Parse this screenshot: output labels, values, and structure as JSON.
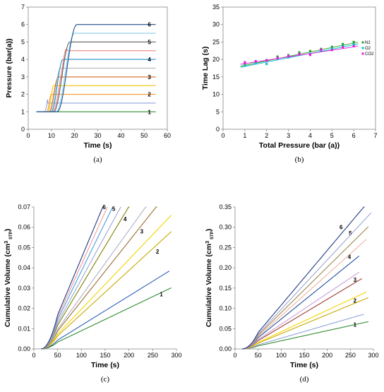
{
  "chart_data": [
    {
      "id": "a",
      "type": "line",
      "panel_label": "(a)",
      "xlabel": "Time (s)",
      "ylabel": "Pressure  (bar(a))",
      "xlim": [
        0,
        60
      ],
      "ylim": [
        0,
        7
      ],
      "xticks": [
        0,
        10,
        20,
        30,
        40,
        50,
        60
      ],
      "yticks": [
        0,
        1,
        2,
        3,
        4,
        5,
        6,
        7
      ],
      "grid": false,
      "series": [
        {
          "name": "1",
          "color": "#2e8b2e",
          "plateau": 1.0,
          "rise_start": 5,
          "rise_end": 6,
          "overshoot": 0
        },
        {
          "name": "",
          "color": "#8fa3d9",
          "plateau": 1.5,
          "rise_start": 7,
          "rise_end": 8.5,
          "overshoot": 0.2
        },
        {
          "name": "2",
          "color": "#f29a2e",
          "plateau": 2.0,
          "rise_start": 8,
          "rise_end": 10,
          "overshoot": 0
        },
        {
          "name": "",
          "color": "#f5c400",
          "plateau": 2.5,
          "rise_start": 8.5,
          "rise_end": 11,
          "overshoot": 0
        },
        {
          "name": "3",
          "color": "#d2691e",
          "plateau": 3.0,
          "rise_start": 9,
          "rise_end": 13,
          "overshoot": 0
        },
        {
          "name": "",
          "color": "#b0b0b0",
          "plateau": 3.5,
          "rise_start": 9.5,
          "rise_end": 14,
          "overshoot": 0
        },
        {
          "name": "4",
          "color": "#1e90c8",
          "plateau": 4.0,
          "rise_start": 10,
          "rise_end": 15,
          "overshoot": 0
        },
        {
          "name": "",
          "color": "#f08080",
          "plateau": 4.5,
          "rise_start": 10.5,
          "rise_end": 17,
          "overshoot": 0.2
        },
        {
          "name": "5",
          "color": "#606060",
          "plateau": 5.0,
          "rise_start": 11,
          "rise_end": 18,
          "overshoot": 0
        },
        {
          "name": "",
          "color": "#87ceeb",
          "plateau": 5.5,
          "rise_start": 12,
          "rise_end": 20,
          "overshoot": 0
        },
        {
          "name": "6",
          "color": "#1f4e8c",
          "plateau": 6.0,
          "rise_start": 12.5,
          "rise_end": 21,
          "overshoot": 0
        }
      ],
      "x_end": 55
    },
    {
      "id": "b",
      "type": "scatter",
      "panel_label": "(b)",
      "xlabel": "Total Pressure (bar (a))",
      "ylabel": "Time Lag (s)",
      "xlim": [
        0,
        7
      ],
      "ylim": [
        0,
        35
      ],
      "xticks": [
        0,
        1,
        2,
        3,
        4,
        5,
        6,
        7
      ],
      "yticks": [
        0,
        5,
        10,
        15,
        20,
        25,
        30,
        35
      ],
      "legend_position": "right",
      "grid": false,
      "x": [
        1,
        1.5,
        2,
        2.5,
        3,
        3.5,
        4,
        4.5,
        5,
        5.5,
        6
      ],
      "series": [
        {
          "name": "N2",
          "color": "#2ca02c",
          "values": [
            18.5,
            19.2,
            19.8,
            20.8,
            21.2,
            22.0,
            22.4,
            23.0,
            23.6,
            24.4,
            25.0
          ],
          "fit": [
            18.3,
            24.7
          ]
        },
        {
          "name": "O2",
          "color": "#17becf",
          "values": [
            18.2,
            19.0,
            18.7,
            20.2,
            20.6,
            21.4,
            21.6,
            22.5,
            23.1,
            23.8,
            24.3
          ],
          "fit": [
            18.0,
            24.2
          ]
        },
        {
          "name": "CO2",
          "color": "#e020e0",
          "values": [
            19.2,
            19.5,
            19.7,
            20.4,
            21.0,
            21.6,
            21.3,
            22.8,
            22.7,
            23.5,
            23.8
          ],
          "fit": [
            18.8,
            23.6
          ]
        }
      ]
    },
    {
      "id": "c",
      "type": "line",
      "panel_label": "(c)",
      "xlabel": "Time (s)",
      "ylabel": "Cumulative Volume (cm³ STP)",
      "ylabel_main": "Cumulative Volume (cm",
      "ylabel_sup": "3",
      "ylabel_sub": "STP",
      "ylabel_close": ")",
      "xlim": [
        0,
        300
      ],
      "ylim": [
        0,
        0.07
      ],
      "xticks": [
        0,
        50,
        100,
        150,
        200,
        250,
        300
      ],
      "yticks": [
        0,
        0.01,
        0.02,
        0.03,
        0.04,
        0.05,
        0.06,
        0.07
      ],
      "ytick_labels": [
        "0.00",
        "0.01",
        "0.02",
        "0.03",
        "0.04",
        "0.05",
        "0.06",
        "0.07"
      ],
      "grid": false,
      "lag": 20,
      "series": [
        {
          "name": "1",
          "color": "#2e8b2e",
          "slope": 0.000112,
          "x_end": 290
        },
        {
          "name": "",
          "color": "#2f5fb8",
          "slope": 0.000145,
          "x_end": 285
        },
        {
          "name": "2",
          "color": "#c8a800",
          "slope": 0.000215,
          "x_end": 290
        },
        {
          "name": "",
          "color": "#f2d400",
          "slope": 0.000245,
          "x_end": 290
        },
        {
          "name": "3",
          "color": "#9c6d2e",
          "slope": 0.000295,
          "x_end": 275
        },
        {
          "name": "",
          "color": "#b0b0c8",
          "slope": 0.000325,
          "x_end": 260
        },
        {
          "name": "4",
          "color": "#808000",
          "slope": 0.00039,
          "x_end": 240
        },
        {
          "name": "",
          "color": "#9aa7d6",
          "slope": 0.00043,
          "x_end": 215
        },
        {
          "name": "5",
          "color": "#4aa0d8",
          "slope": 0.00048,
          "x_end": 205
        },
        {
          "name": "",
          "color": "#f59a9a",
          "slope": 0.00052,
          "x_end": 190
        },
        {
          "name": "6",
          "color": "#203a80",
          "slope": 0.00056,
          "x_end": 180
        }
      ],
      "label_positions": [
        [
          268,
          0.026
        ],
        [
          0,
          0
        ],
        [
          260,
          0.047
        ],
        [
          0,
          0
        ],
        [
          227,
          0.057
        ],
        [
          0,
          0
        ],
        [
          192,
          0.063
        ],
        [
          0,
          0
        ],
        [
          168,
          0.068
        ],
        [
          0,
          0
        ],
        [
          148,
          0.069
        ]
      ]
    },
    {
      "id": "d",
      "type": "line",
      "panel_label": "(d)",
      "xlabel": "Time (s)",
      "ylabel": "Cumulative Volume (cm³ STP)",
      "ylabel_main": "Cumulative Volume (cm",
      "ylabel_sup": "3",
      "ylabel_sub": "STP",
      "ylabel_close": ")",
      "xlim": [
        0,
        300
      ],
      "ylim": [
        0,
        0.35
      ],
      "xticks": [
        0,
        50,
        100,
        150,
        200,
        250,
        300
      ],
      "yticks": [
        0,
        0.05,
        0.1,
        0.15,
        0.2,
        0.25,
        0.3,
        0.35
      ],
      "ytick_labels": [
        "0.00",
        "0.05",
        "0.10",
        "0.15",
        "0.20",
        "0.25",
        "0.30",
        "0.35"
      ],
      "grid": false,
      "lag": 20,
      "series": [
        {
          "name": "1",
          "color": "#2e8b2e",
          "slope": 0.00025,
          "x_end": 290
        },
        {
          "name": "",
          "color": "#8fa3d9",
          "slope": 0.00033,
          "x_end": 280
        },
        {
          "name": "2",
          "color": "#c8a800",
          "slope": 0.00047,
          "x_end": 290
        },
        {
          "name": "",
          "color": "#f5d400",
          "slope": 0.00053,
          "x_end": 285
        },
        {
          "name": "3",
          "color": "#9c3d2e",
          "slope": 0.00068,
          "x_end": 275
        },
        {
          "name": "",
          "color": "#c8a0d8",
          "slope": 0.00076,
          "x_end": 270
        },
        {
          "name": "4",
          "color": "#1f4e9c",
          "slope": 0.00092,
          "x_end": 270
        },
        {
          "name": "",
          "color": "#f0b0a0",
          "slope": 0.00102,
          "x_end": 285
        },
        {
          "name": "5",
          "color": "#a08850",
          "slope": 0.00112,
          "x_end": 290
        },
        {
          "name": "",
          "color": "#9aa7d6",
          "slope": 0.00122,
          "x_end": 295
        },
        {
          "name": "6",
          "color": "#203a80",
          "slope": 0.00135,
          "x_end": 282
        }
      ],
      "label_positions": [
        [
          260,
          0.055
        ],
        [
          0,
          0
        ],
        [
          260,
          0.114
        ],
        [
          0,
          0
        ],
        [
          260,
          0.165
        ],
        [
          0,
          0
        ],
        [
          248,
          0.222
        ],
        [
          0,
          0
        ],
        [
          250,
          0.28
        ],
        [
          0,
          0
        ],
        [
          230,
          0.295
        ]
      ]
    }
  ]
}
